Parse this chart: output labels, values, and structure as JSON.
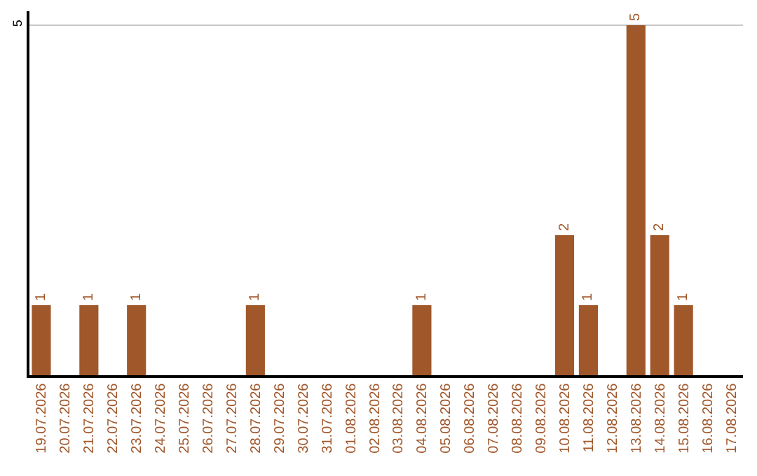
{
  "chart_data": {
    "type": "bar",
    "categories": [
      "19.07.2026",
      "20.07.2026",
      "21.07.2026",
      "22.07.2026",
      "23.07.2026",
      "24.07.2026",
      "25.07.2026",
      "26.07.2026",
      "27.07.2026",
      "28.07.2026",
      "29.07.2026",
      "30.07.2026",
      "31.07.2026",
      "01.08.2026",
      "02.08.2026",
      "03.08.2026",
      "04.08.2026",
      "05.08.2026",
      "06.08.2026",
      "07.08.2026",
      "08.08.2026",
      "09.08.2026",
      "10.08.2026",
      "11.08.2026",
      "12.08.2026",
      "13.08.2026",
      "14.08.2026",
      "15.08.2026",
      "16.08.2026",
      "17.08.2026"
    ],
    "values": [
      1,
      0,
      1,
      0,
      1,
      0,
      0,
      0,
      0,
      1,
      0,
      0,
      0,
      0,
      0,
      0,
      1,
      0,
      0,
      0,
      0,
      0,
      2,
      1,
      0,
      5,
      2,
      1,
      0,
      0
    ],
    "value_labels": [
      "1",
      null,
      "1",
      null,
      "1",
      null,
      null,
      null,
      null,
      "1",
      null,
      null,
      null,
      null,
      null,
      null,
      "1",
      null,
      null,
      null,
      null,
      null,
      "2",
      "1",
      null,
      "5",
      "2",
      "1",
      null,
      null
    ],
    "color": "#a0572a",
    "ylim": [
      0,
      5.2
    ],
    "yticks": [
      5
    ],
    "grid": "y",
    "legend": false
  }
}
